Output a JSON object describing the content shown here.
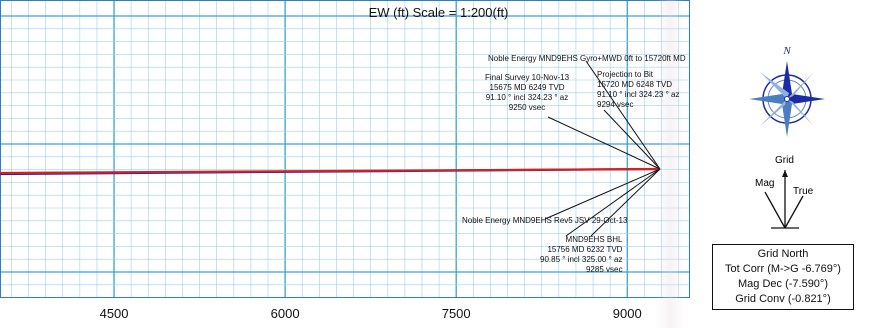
{
  "title": "EW (ft) Scale = 1:200(ft)",
  "chart_data": {
    "type": "line",
    "title": "EW (ft) Scale = 1:200(ft)",
    "x_ticks": [
      4500,
      6000,
      7500,
      9000
    ],
    "xlim": [
      3500,
      9550
    ],
    "series": [
      {
        "color": "#1a2aa8",
        "x": [
          3500,
          9287
        ],
        "y": [
          0,
          5
        ]
      },
      {
        "color": "#d62020",
        "x": [
          3500,
          9287
        ],
        "y": [
          1,
          5
        ]
      }
    ]
  },
  "annotations": {
    "noble_top": "Noble Energy MND9EHS Gyro+MWD 0ft to 15720ft MD",
    "final_survey": "Final Survey 10-Nov-13\n15675 MD 6249 TVD\n91.10 ° incl 324.23 ° az\n9250 vsec",
    "projection": "Projection to Bit\n15720 MD 6248 TVD\n91.10 ° incl 324.23 ° az\n9294 vsec",
    "noble_rev": "Noble Energy MND9EHS Rev5 JSV 29-Oct-13",
    "bhl": "MND9EHS BHL\n15756 MD 6232 TVD\n90.85 ° incl 325.00 ° az\n9285 vsec"
  },
  "north_ref": {
    "grid": "Grid",
    "mag": "Mag",
    "true": "True"
  },
  "info_box": {
    "line1": "Grid North",
    "line2": "Tot Corr (M->G -6.769°)",
    "line3": "Mag Dec (-7.590°)",
    "line4": "Grid Conv (-0.821°)"
  },
  "colors": {
    "major_grid": "#3aa0d8",
    "minor_grid": "#9fd0ee",
    "wellpath_blue": "#1a2aa8",
    "wellpath_red": "#d62020"
  }
}
